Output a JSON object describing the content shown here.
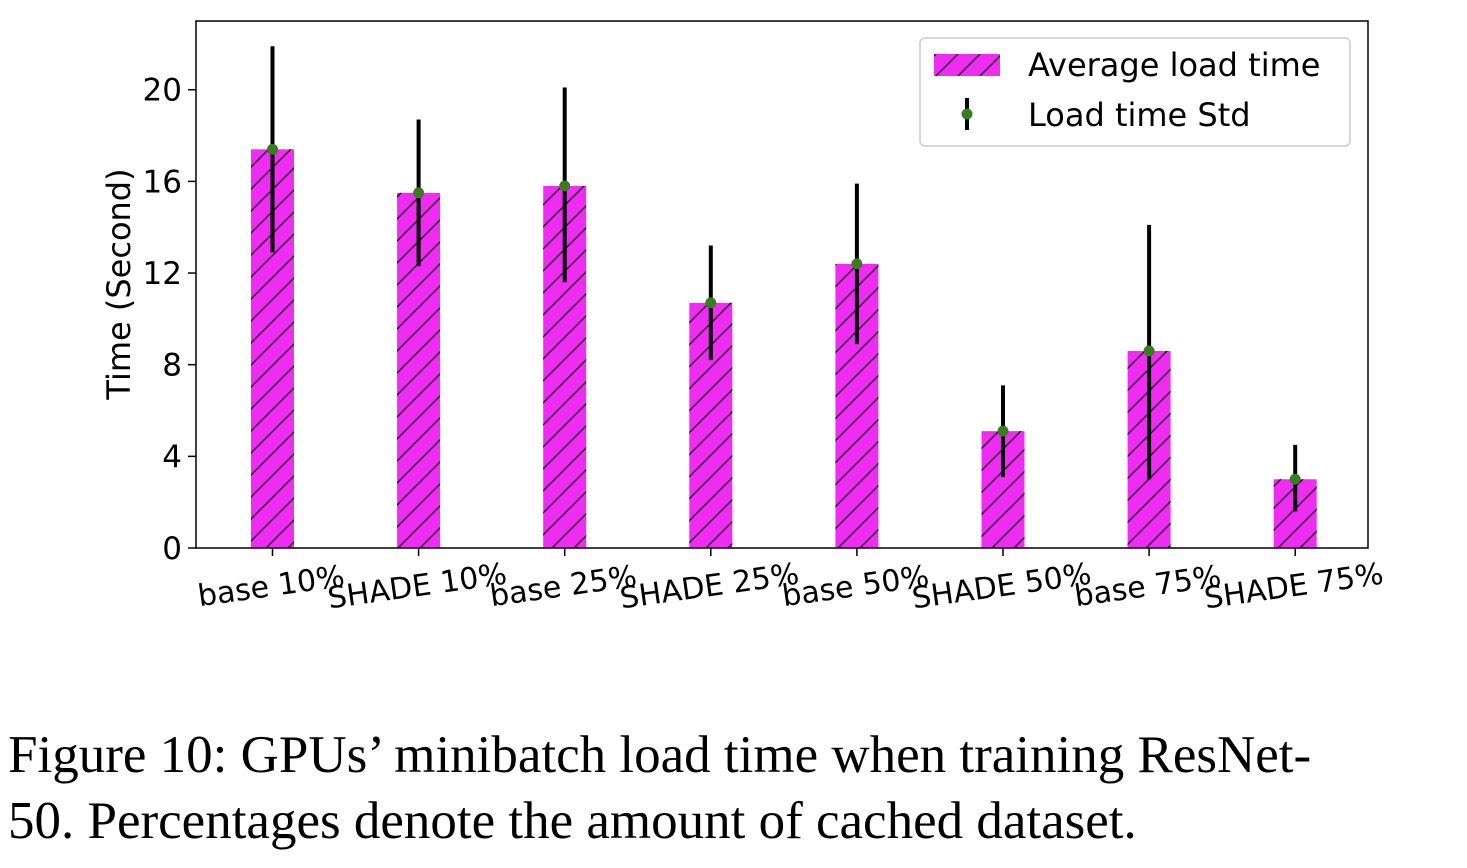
{
  "chart_data": {
    "type": "bar",
    "categories": [
      "base 10%",
      "SHADE 10%",
      "base 25%",
      "SHADE 25%",
      "base 50%",
      "SHADE 50%",
      "base 75%",
      "SHADE 75%"
    ],
    "series": [
      {
        "name": "Average load time",
        "values": [
          17.4,
          15.5,
          15.8,
          10.7,
          12.4,
          5.1,
          8.6,
          3.0
        ]
      },
      {
        "name": "Load time Std",
        "type": "errorbar",
        "lower": [
          12.9,
          12.3,
          11.6,
          8.2,
          8.9,
          3.1,
          3.0,
          1.6
        ],
        "upper": [
          21.9,
          18.7,
          20.1,
          13.2,
          15.9,
          7.1,
          14.1,
          4.5
        ]
      }
    ],
    "ylabel": "Time (Second)",
    "xlabel": "",
    "ylim": [
      0,
      23
    ],
    "yticks": [
      0,
      4,
      8,
      12,
      16,
      20
    ],
    "legend_position": "top-right",
    "grid": false,
    "bar_color": "#ee2cf2",
    "bar_hatch": "/",
    "errorbar_color": "#000000",
    "marker_color": "#3a7d21"
  },
  "caption": {
    "line1": "Figure 10: GPUs’ minibatch load time when training ResNet-",
    "line2": "50. Percentages denote the amount of cached dataset."
  }
}
